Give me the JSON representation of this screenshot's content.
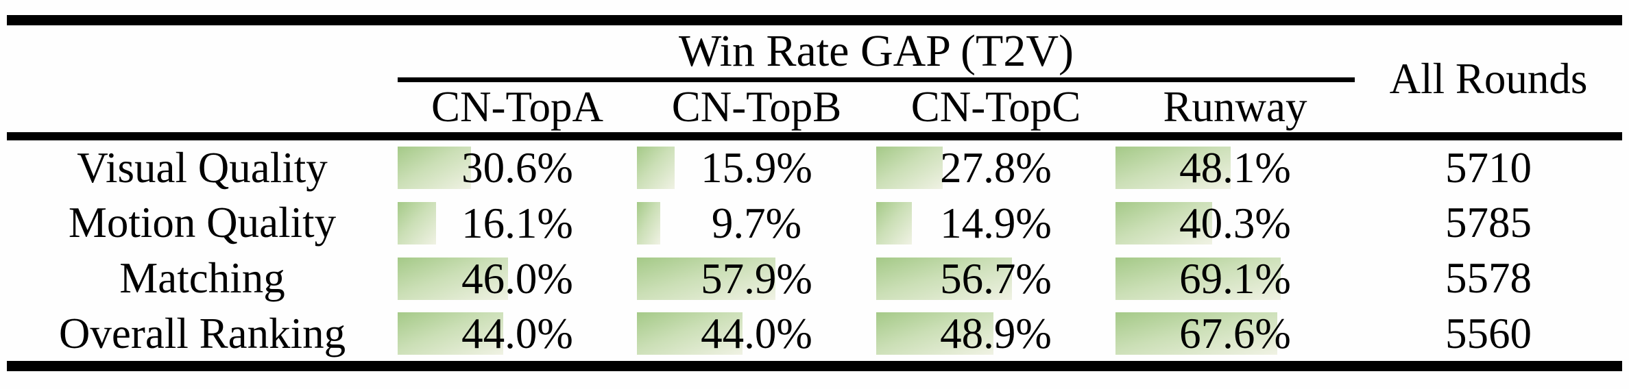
{
  "table": {
    "group_header": "Win Rate GAP (T2V)",
    "all_rounds_header": "All Rounds",
    "columns": [
      "CN-TopA",
      "CN-TopB",
      "CN-TopC",
      "Runway"
    ],
    "rows": [
      {
        "label": "Visual Quality",
        "pct": [
          30.6,
          15.9,
          27.8,
          48.1
        ],
        "text": [
          "30.6%",
          "15.9%",
          "27.8%",
          "48.1%"
        ],
        "rounds": "5710"
      },
      {
        "label": "Motion Quality",
        "pct": [
          16.1,
          9.7,
          14.9,
          40.3
        ],
        "text": [
          "16.1%",
          "9.7%",
          "14.9%",
          "40.3%"
        ],
        "rounds": "5785"
      },
      {
        "label": "Matching",
        "pct": [
          46.0,
          57.9,
          56.7,
          69.1
        ],
        "text": [
          "46.0%",
          "57.9%",
          "56.7%",
          "69.1%"
        ],
        "rounds": "5578"
      },
      {
        "label": "Overall Ranking",
        "pct": [
          44.0,
          44.0,
          48.9,
          67.6
        ],
        "text": [
          "44.0%",
          "44.0%",
          "48.9%",
          "67.6%"
        ],
        "rounds": "5560"
      }
    ]
  },
  "colors": {
    "bar_gradient_start": "#a4c987",
    "bar_gradient_end": "#f0f2e4",
    "rule": "#000000",
    "background": "#fefefe",
    "text": "#000000"
  },
  "chart_data": {
    "type": "table",
    "title": "Win Rate GAP (T2V)",
    "columns": [
      "CN-TopA",
      "CN-TopB",
      "CN-TopC",
      "Runway",
      "All Rounds"
    ],
    "row_labels": [
      "Visual Quality",
      "Motion Quality",
      "Matching",
      "Overall Ranking"
    ],
    "win_rate_gap_percent": [
      [
        30.6,
        15.9,
        27.8,
        48.1
      ],
      [
        16.1,
        9.7,
        14.9,
        40.3
      ],
      [
        46.0,
        57.9,
        56.7,
        69.1
      ],
      [
        44.0,
        44.0,
        48.9,
        67.6
      ]
    ],
    "all_rounds": [
      5710,
      5785,
      5578,
      5560
    ],
    "bar_scale": "data bars span 0-100% of column width",
    "legend_position": "none",
    "grid": false
  }
}
